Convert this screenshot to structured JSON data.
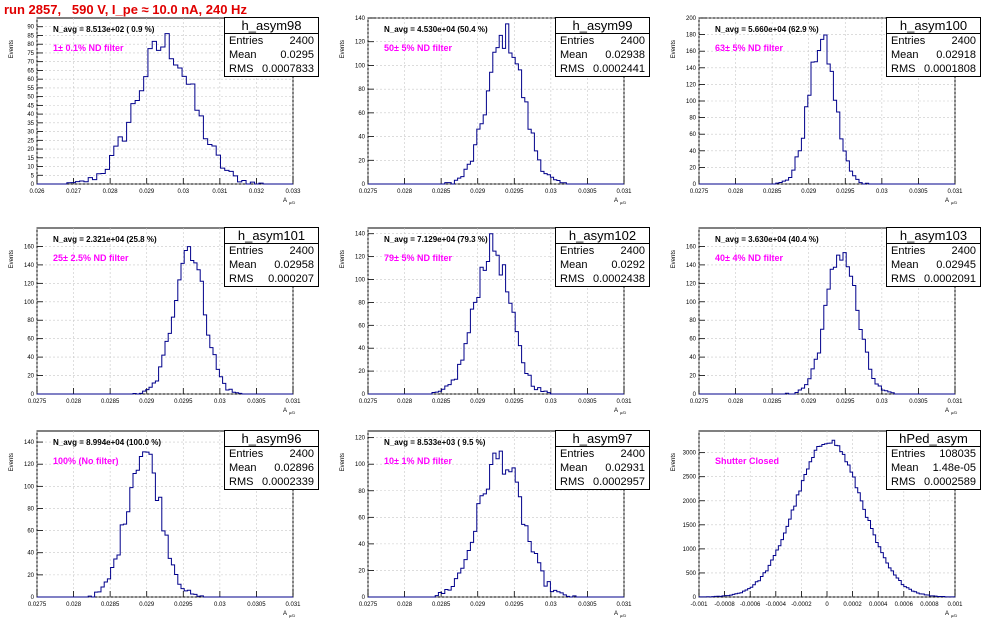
{
  "page_title": "run 2857,   590 V, I_pe ≈ 10.0 nA, 240 Hz",
  "stat_labels": {
    "entries": "Entries",
    "mean": "Mean",
    "rms": "RMS"
  },
  "axis": {
    "ylabel": "Events",
    "xlabel": "A",
    "xlabel_sub": "μ/D"
  },
  "colors": {
    "hist": "#00008b",
    "note": "#ff00ff",
    "title": "#e00000",
    "grid": "#c8c8c8"
  },
  "chart_data": [
    {
      "type": "bar",
      "title": "h_asym98",
      "navg": "N_avg = 8.513e+02 ( 0.9 %)",
      "note": "1± 0.1% ND filter",
      "entries": "2400",
      "mean": "0.0295",
      "rms": "0.0007833",
      "xlim": [
        0.026,
        0.033
      ],
      "xticks": [
        "0.026",
        "0.027",
        "0.028",
        "0.029",
        "0.03",
        "0.031",
        "0.032",
        "0.033"
      ],
      "ylim": [
        0,
        95
      ],
      "yticks": [
        "0",
        "5",
        "10",
        "15",
        "20",
        "25",
        "30",
        "35",
        "40",
        "45",
        "50",
        "55",
        "60",
        "65",
        "70",
        "75",
        "80",
        "85",
        "90"
      ],
      "dist": {
        "mu": 0.0295,
        "sigma": 0.00078,
        "peak": 80,
        "nbins": 60
      }
    },
    {
      "type": "bar",
      "title": "h_asym99",
      "navg": "N_avg = 4.530e+04 (50.4 %)",
      "note": "50± 5% ND filter",
      "entries": "2400",
      "mean": "0.02938",
      "rms": "0.0002441",
      "xlim": [
        0.0275,
        0.031
      ],
      "xticks": [
        "0.0275",
        "0.028",
        "0.0285",
        "0.029",
        "0.0295",
        "0.03",
        "0.0305",
        "0.031"
      ],
      "ylim": [
        0,
        140
      ],
      "yticks": [
        "0",
        "20",
        "40",
        "60",
        "80",
        "100",
        "120",
        "140"
      ],
      "dist": {
        "mu": 0.02938,
        "sigma": 0.000244,
        "peak": 125,
        "nbins": 80
      }
    },
    {
      "type": "bar",
      "title": "h_asym100",
      "navg": "N_avg = 5.660e+04 (62.9 %)",
      "note": "63± 5% ND filter",
      "entries": "2400",
      "mean": "0.02918",
      "rms": "0.0001808",
      "xlim": [
        0.0275,
        0.031
      ],
      "xticks": [
        "0.0275",
        "0.028",
        "0.0285",
        "0.029",
        "0.0295",
        "0.03",
        "0.0305",
        "0.031"
      ],
      "ylim": [
        0,
        200
      ],
      "yticks": [
        "0",
        "20",
        "40",
        "60",
        "80",
        "100",
        "120",
        "140",
        "160",
        "180",
        "200"
      ],
      "dist": {
        "mu": 0.02918,
        "sigma": 0.000181,
        "peak": 172,
        "nbins": 80
      }
    },
    {
      "type": "bar",
      "title": "h_asym101",
      "navg": "N_avg = 2.321e+04 (25.8 %)",
      "note": "25± 2.5% ND filter",
      "entries": "2400",
      "mean": "0.02958",
      "rms": "0.000207",
      "xlim": [
        0.0275,
        0.031
      ],
      "xticks": [
        "0.0275",
        "0.028",
        "0.0285",
        "0.029",
        "0.0295",
        "0.03",
        "0.0305",
        "0.031"
      ],
      "ylim": [
        0,
        180
      ],
      "yticks": [
        "0",
        "20",
        "40",
        "60",
        "80",
        "100",
        "120",
        "140",
        "160"
      ],
      "dist": {
        "mu": 0.02958,
        "sigma": 0.000207,
        "peak": 160,
        "nbins": 80
      }
    },
    {
      "type": "bar",
      "title": "h_asym102",
      "navg": "N_avg = 7.129e+04 (79.3 %)",
      "note": "79± 5% ND filter",
      "entries": "2400",
      "mean": "0.0292",
      "rms": "0.0002438",
      "xlim": [
        0.0275,
        0.031
      ],
      "xticks": [
        "0.0275",
        "0.028",
        "0.0285",
        "0.029",
        "0.0295",
        "0.03",
        "0.0305",
        "0.031"
      ],
      "ylim": [
        0,
        145
      ],
      "yticks": [
        "0",
        "20",
        "40",
        "60",
        "80",
        "100",
        "120",
        "140"
      ],
      "dist": {
        "mu": 0.0292,
        "sigma": 0.000244,
        "peak": 128,
        "nbins": 80
      }
    },
    {
      "type": "bar",
      "title": "h_asym103",
      "navg": "N_avg = 3.630e+04 (40.4 %)",
      "note": "40± 4% ND filter",
      "entries": "2400",
      "mean": "0.02945",
      "rms": "0.0002091",
      "xlim": [
        0.0275,
        0.031
      ],
      "xticks": [
        "0.0275",
        "0.028",
        "0.0285",
        "0.029",
        "0.0295",
        "0.03",
        "0.0305",
        "0.031"
      ],
      "ylim": [
        0,
        180
      ],
      "yticks": [
        "0",
        "20",
        "40",
        "60",
        "80",
        "100",
        "120",
        "140",
        "160"
      ],
      "dist": {
        "mu": 0.02945,
        "sigma": 0.000209,
        "peak": 155,
        "nbins": 80
      }
    },
    {
      "type": "bar",
      "title": "h_asym96",
      "navg": "N_avg = 8.994e+04 (100.0 %)",
      "note": "100% (No filter)",
      "entries": "2400",
      "mean": "0.02896",
      "rms": "0.0002339",
      "xlim": [
        0.0275,
        0.031
      ],
      "xticks": [
        "0.0275",
        "0.028",
        "0.0285",
        "0.029",
        "0.0295",
        "0.03",
        "0.0305",
        "0.031"
      ],
      "ylim": [
        0,
        150
      ],
      "yticks": [
        "0",
        "20",
        "40",
        "60",
        "80",
        "100",
        "120",
        "140"
      ],
      "dist": {
        "mu": 0.02896,
        "sigma": 0.000234,
        "peak": 132,
        "nbins": 80
      }
    },
    {
      "type": "bar",
      "title": "h_asym97",
      "navg": "N_avg = 8.533e+03 ( 9.5 %)",
      "note": "10± 1% ND filter",
      "entries": "2400",
      "mean": "0.02931",
      "rms": "0.0002957",
      "xlim": [
        0.0275,
        0.031
      ],
      "xticks": [
        "0.0275",
        "0.028",
        "0.0285",
        "0.029",
        "0.0295",
        "0.03",
        "0.0305",
        "0.031"
      ],
      "ylim": [
        0,
        125
      ],
      "yticks": [
        "0",
        "20",
        "40",
        "60",
        "80",
        "100",
        "120"
      ],
      "dist": {
        "mu": 0.02931,
        "sigma": 0.000296,
        "peak": 105,
        "nbins": 80
      }
    },
    {
      "type": "bar",
      "title": "hPed_asym",
      "navg": "",
      "note": "Shutter Closed",
      "entries": "108035",
      "mean": "1.48e-05",
      "rms": "0.0002589",
      "xlim": [
        -0.001,
        0.001
      ],
      "xticks": [
        "-0.001",
        "-0.0008",
        "-0.0006",
        "-0.0004",
        "-0.0002",
        "0",
        "0.0002",
        "0.0004",
        "0.0006",
        "0.0008",
        "0.001"
      ],
      "ylim": [
        0,
        3450
      ],
      "yticks": [
        "0",
        "500",
        "1000",
        "1500",
        "2000",
        "2500",
        "3000"
      ],
      "dist": {
        "mu": 1.48e-05,
        "sigma": 0.000259,
        "peak": 3250,
        "nbins": 100
      }
    }
  ]
}
